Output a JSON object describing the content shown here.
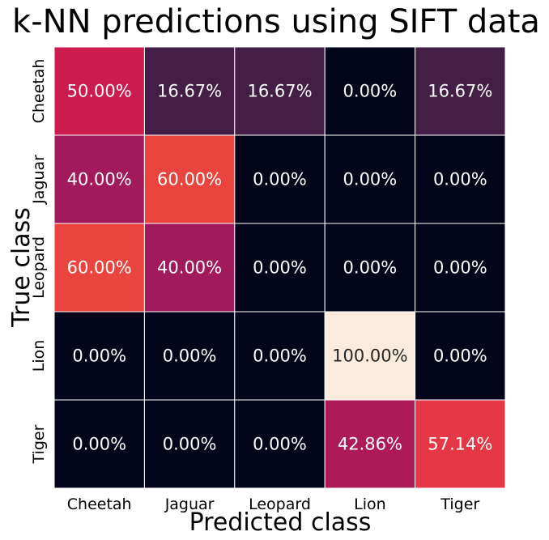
{
  "chart_data": {
    "type": "heatmap",
    "title": "k-NN predictions using SIFT data",
    "xlabel": "Predicted class",
    "ylabel": "True class",
    "x_categories": [
      "Cheetah",
      "Jaguar",
      "Leopard",
      "Lion",
      "Tiger"
    ],
    "y_categories": [
      "Cheetah",
      "Jaguar",
      "Leopard",
      "Lion",
      "Tiger"
    ],
    "values": [
      [
        50.0,
        16.67,
        16.67,
        0.0,
        16.67
      ],
      [
        40.0,
        60.0,
        0.0,
        0.0,
        0.0
      ],
      [
        60.0,
        40.0,
        0.0,
        0.0,
        0.0
      ],
      [
        0.0,
        0.0,
        0.0,
        100.0,
        0.0
      ],
      [
        0.0,
        0.0,
        0.0,
        42.86,
        57.14
      ]
    ],
    "labels": [
      [
        "50.00%",
        "16.67%",
        "16.67%",
        "0.00%",
        "16.67%"
      ],
      [
        "40.00%",
        "60.00%",
        "0.00%",
        "0.00%",
        "0.00%"
      ],
      [
        "60.00%",
        "40.00%",
        "0.00%",
        "0.00%",
        "0.00%"
      ],
      [
        "0.00%",
        "0.00%",
        "0.00%",
        "100.00%",
        "0.00%"
      ],
      [
        "0.00%",
        "0.00%",
        "0.00%",
        "42.86%",
        "57.14%"
      ]
    ],
    "value_range": [
      0,
      100
    ],
    "colorbar": false,
    "grid": false,
    "colormap": "rocket",
    "cell_border_color": "#ffffff"
  }
}
